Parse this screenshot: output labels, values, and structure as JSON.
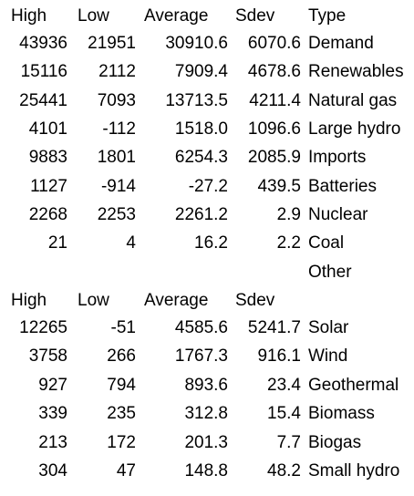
{
  "table1": {
    "header": [
      "High",
      "Low",
      "Average",
      "Sdev",
      "Type"
    ],
    "rows": [
      [
        "43936",
        "21951",
        "30910.6",
        "6070.6",
        "Demand"
      ],
      [
        "15116",
        "2112",
        "7909.4",
        "4678.6",
        "Renewables"
      ],
      [
        "25441",
        "7093",
        "13713.5",
        "4211.4",
        "Natural gas"
      ],
      [
        "4101",
        "-112",
        "1518.0",
        "1096.6",
        "Large hydro"
      ],
      [
        "9883",
        "1801",
        "6254.3",
        "2085.9",
        "Imports"
      ],
      [
        "1127",
        "-914",
        "-27.2",
        "439.5",
        "Batteries"
      ],
      [
        "2268",
        "2253",
        "2261.2",
        "2.9",
        "Nuclear"
      ],
      [
        "21",
        "4",
        "16.2",
        "2.2",
        "Coal"
      ]
    ]
  },
  "table2": {
    "title": "Other",
    "header": [
      "High",
      "Low",
      "Average",
      "Sdev"
    ],
    "rows": [
      [
        "12265",
        "-51",
        "4585.6",
        "5241.7",
        "Solar"
      ],
      [
        "3758",
        "266",
        "1767.3",
        "916.1",
        "Wind"
      ],
      [
        "927",
        "794",
        "893.6",
        "23.4",
        "Geothermal"
      ],
      [
        "339",
        "235",
        "312.8",
        "15.4",
        "Biomass"
      ],
      [
        "213",
        "172",
        "201.3",
        "7.7",
        "Biogas"
      ],
      [
        "304",
        "47",
        "148.8",
        "48.2",
        "Small hydro"
      ]
    ]
  }
}
